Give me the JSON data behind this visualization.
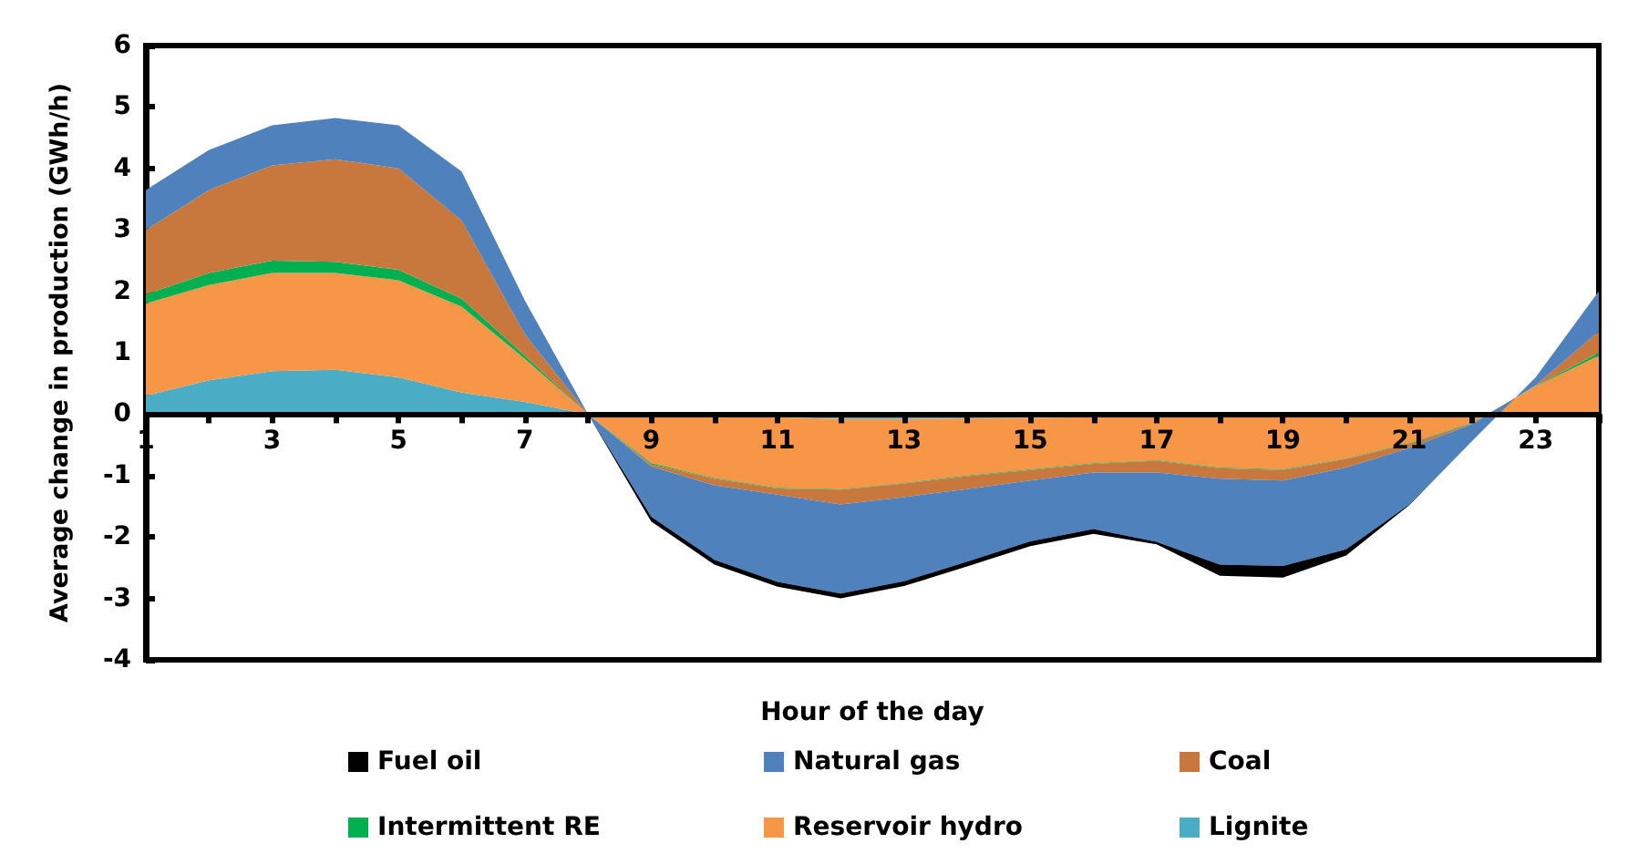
{
  "chart_data": {
    "type": "area",
    "stacked": true,
    "xlabel": "Hour of the day",
    "ylabel": "Average change in production (GWh/h)",
    "categories": [
      "1",
      null,
      "3",
      null,
      "5",
      null,
      "7",
      null,
      "9",
      null,
      "11",
      null,
      "13",
      null,
      "15",
      null,
      "17",
      null,
      "19",
      null,
      "21",
      null,
      "23",
      null
    ],
    "ylim": [
      -4,
      6
    ],
    "yticks": [
      -4,
      -3,
      -2,
      -1,
      0,
      1,
      2,
      3,
      4,
      5,
      6
    ],
    "legend": "bottom",
    "series": [
      {
        "name": "Lignite",
        "color": "#4bacc6",
        "values": [
          0.3,
          0.55,
          0.7,
          0.72,
          0.6,
          0.35,
          0.2,
          0,
          -0.02,
          -0.04,
          -0.05,
          -0.08,
          -0.08,
          -0.07,
          -0.06,
          -0.05,
          -0.04,
          -0.04,
          -0.04,
          -0.03,
          -0.02,
          -0.01,
          0.01,
          0.03
        ]
      },
      {
        "name": "Reservoir hydro",
        "color": "#f79646",
        "values": [
          1.5,
          1.55,
          1.6,
          1.58,
          1.58,
          1.4,
          0.7,
          0,
          -0.78,
          -1.0,
          -1.15,
          -1.14,
          -1.04,
          -0.93,
          -0.84,
          -0.75,
          -0.71,
          -0.83,
          -0.86,
          -0.69,
          -0.45,
          -0.13,
          0.44,
          0.92
        ]
      },
      {
        "name": "Intermittent RE",
        "color": "#00b050",
        "values": [
          0.15,
          0.2,
          0.2,
          0.18,
          0.17,
          0.13,
          0.05,
          0,
          -0.02,
          -0.01,
          -0.01,
          -0.01,
          -0.01,
          -0.01,
          -0.01,
          -0.01,
          -0.01,
          -0.01,
          -0.01,
          -0.01,
          -0.01,
          -0.01,
          0.01,
          0.05
        ]
      },
      {
        "name": "Coal",
        "color": "#c8783c",
        "values": [
          1.05,
          1.35,
          1.55,
          1.67,
          1.65,
          1.27,
          0.35,
          0,
          -0.03,
          -0.11,
          -0.1,
          -0.24,
          -0.22,
          -0.21,
          -0.17,
          -0.14,
          -0.19,
          -0.17,
          -0.17,
          -0.14,
          -0.07,
          -0.01,
          0.01,
          0.35
        ]
      },
      {
        "name": "Natural gas",
        "color": "#4f81bd",
        "values": [
          0.65,
          0.65,
          0.65,
          0.67,
          0.7,
          0.8,
          0.55,
          0,
          -0.82,
          -1.21,
          -1.42,
          -1.45,
          -1.37,
          -1.18,
          -0.99,
          -0.92,
          -1.13,
          -1.4,
          -1.39,
          -1.33,
          -0.92,
          -0.27,
          0.13,
          0.65
        ]
      },
      {
        "name": "Fuel oil",
        "color": "#000000",
        "values": [
          0,
          0,
          0,
          0,
          0,
          0,
          0,
          0,
          -0.08,
          -0.08,
          -0.08,
          -0.08,
          -0.08,
          -0.08,
          -0.08,
          -0.08,
          -0.04,
          -0.18,
          -0.19,
          -0.1,
          -0.01,
          0,
          0,
          0
        ]
      }
    ]
  }
}
